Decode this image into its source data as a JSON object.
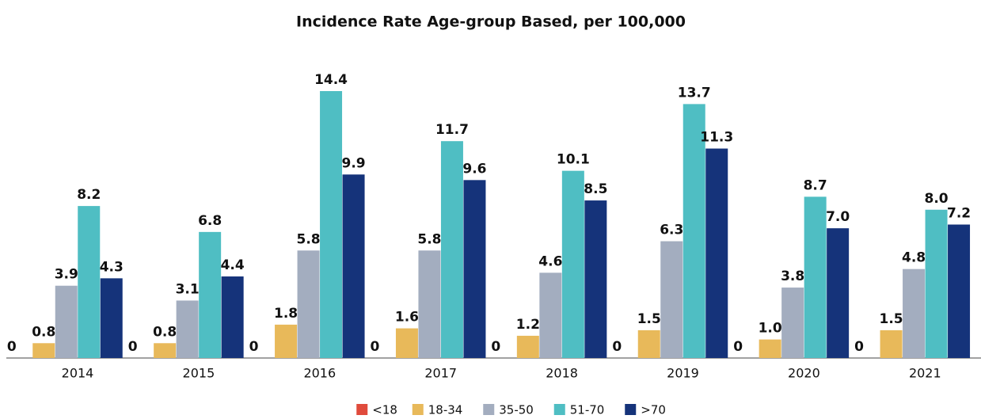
{
  "chart_data": {
    "type": "bar",
    "title": "Incidence Rate Age-group Based, per 100,000",
    "categories": [
      "2014",
      "2015",
      "2016",
      "2017",
      "2018",
      "2019",
      "2020",
      "2021"
    ],
    "series": [
      {
        "name": "<18",
        "color": "#e04b3c",
        "values": [
          0,
          0,
          0,
          0,
          0,
          0,
          0,
          0
        ]
      },
      {
        "name": "18-34",
        "color": "#e8b95a",
        "values": [
          0.8,
          0.8,
          1.8,
          1.6,
          1.2,
          1.5,
          1.0,
          1.5
        ],
        "value_labels": [
          "0.8",
          "0.8",
          "1.8",
          "1.6",
          "1.2",
          "1.5",
          "1.0",
          "1.5"
        ]
      },
      {
        "name": "35-50",
        "color": "#a3adbf",
        "values": [
          3.9,
          3.1,
          5.8,
          5.8,
          4.6,
          6.3,
          3.8,
          4.8
        ],
        "value_labels": [
          "3.9",
          "3.1",
          "5.8",
          "5.8",
          "4.6",
          "6.3",
          "3.8",
          "4.8"
        ]
      },
      {
        "name": "51-70",
        "color": "#4fbec3",
        "values": [
          8.2,
          6.8,
          14.4,
          11.7,
          10.1,
          13.7,
          8.7,
          8.0
        ],
        "value_labels": [
          "8.2",
          "6.8",
          "14.4",
          "11.7",
          "10.1",
          "13.7",
          "8.7",
          "8.0"
        ]
      },
      {
        "name": ">70",
        "color": "#15337a",
        "values": [
          4.3,
          4.4,
          9.9,
          9.6,
          8.5,
          11.3,
          7.0,
          7.2
        ],
        "value_labels": [
          "4.3",
          "4.4",
          "9.9",
          "9.6",
          "8.5",
          "11.3",
          "7.0",
          "7.2"
        ]
      }
    ],
    "legend": "bottom"
  }
}
